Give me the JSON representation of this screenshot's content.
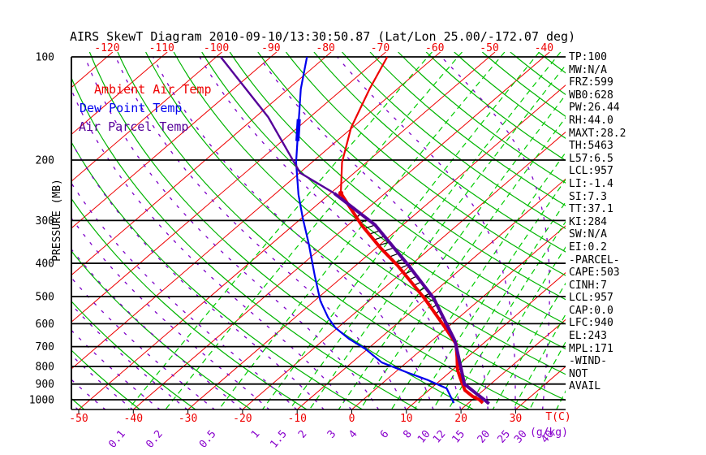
{
  "title": "AIRS SkewT Diagram 2010-09-10/13:30:50.87 (Lat/Lon 25.00/-172.07 deg)",
  "legend": [
    {
      "label": "Ambient Air Temp",
      "color": "#ee0000"
    },
    {
      "label": "Dew Point Temp",
      "color": "#0000ee"
    },
    {
      "label": "Air Parcel Temp",
      "color": "#550099"
    }
  ],
  "axes": {
    "pressure_label": "PRESSURE (MB)",
    "temp_label": "T(C)",
    "mixing_label": "(g/kg)",
    "pressure_ticks_mb": [
      100,
      200,
      300,
      400,
      500,
      600,
      700,
      800,
      900,
      1000
    ],
    "top_temp_ticks_c": [
      -120,
      -110,
      -100,
      -90,
      -80,
      -70,
      -60,
      -50,
      -40
    ],
    "bottom_temp_ticks_c": [
      -50,
      -40,
      -30,
      -20,
      -10,
      0,
      10,
      20,
      30
    ]
  },
  "stats": [
    "TP:100",
    "MW:N/A",
    "FRZ:599",
    "WB0:628",
    "PW:26.44",
    "RH:44.0",
    "MAXT:28.2",
    "TH:5463",
    "L57:6.5",
    "LCL:957",
    "LI:-1.4",
    "SI:7.3",
    "TT:37.1",
    "KI:284",
    "SW:N/A",
    "EI:0.2",
    "-PARCEL-",
    "CAPE:503",
    "CINH:7",
    "LCL:957",
    "CAP:0.0",
    "LFC:940",
    "EL:243",
    "MPL:171",
    "-WIND-",
    "NOT",
    "AVAIL"
  ],
  "colors": {
    "isotherm_red": "#ee0000",
    "dry_adiabat_green": "#00b400",
    "mixing_green": "#00cc00",
    "moist_purple": "#7d00c8",
    "purple_text": "#8800cc",
    "ambient_red": "#ee0000",
    "dew_blue": "#0000ee",
    "parcel_purple": "#550099",
    "black": "#000000"
  },
  "chart_data": {
    "type": "line",
    "subtype": "skew-t-log-p",
    "title": "AIRS SkewT Diagram 2010-09-10/13:30:50.87 (Lat/Lon 25.00/-172.07 deg)",
    "xlabel": "T(C)",
    "ylabel": "PRESSURE (MB)",
    "pressure_range_mb": [
      100,
      1070
    ],
    "bottom_temp_range_c": [
      -50,
      38
    ],
    "isotherms_c": {
      "min": -160,
      "max": 40,
      "step": 10
    },
    "dry_adiabats_theta_k": {
      "min": 220,
      "max": 470,
      "step": 10
    },
    "moist_adiabats_start_c": {
      "min": -55,
      "max": 40,
      "step": 5
    },
    "mixing_ratio_lines_gkg": [
      0.1,
      0.2,
      0.5,
      1,
      1.5,
      2,
      3,
      4,
      6,
      8,
      10,
      12,
      15,
      20,
      25,
      30,
      40
    ],
    "cape_hatch_between_mb": [
      250,
      900
    ],
    "dew_thick_segment_mb": [
      152,
      176
    ],
    "series": [
      {
        "name": "Ambient Air Temp",
        "color": "#ee0000",
        "points": [
          [
            100,
            -68.7
          ],
          [
            124,
            -65.1
          ],
          [
            161,
            -60.2
          ],
          [
            203,
            -54.5
          ],
          [
            250,
            -48.1
          ],
          [
            309,
            -37.6
          ],
          [
            360,
            -29.3
          ],
          [
            406,
            -22.3
          ],
          [
            506,
            -10.4
          ],
          [
            612,
            -0.7
          ],
          [
            687,
            5.1
          ],
          [
            753,
            8.2
          ],
          [
            818,
            10.9
          ],
          [
            863,
            13.1
          ],
          [
            938,
            16.6
          ],
          [
            979,
            19.4
          ],
          [
            1000,
            21.3
          ],
          [
            1022,
            22.6
          ]
        ]
      },
      {
        "name": "Dew Point Temp",
        "color": "#0000ee",
        "points": [
          [
            100,
            -83.4
          ],
          [
            124,
            -77.7
          ],
          [
            163,
            -69.5
          ],
          [
            203,
            -62.9
          ],
          [
            252,
            -55.6
          ],
          [
            296,
            -49.7
          ],
          [
            350,
            -43.3
          ],
          [
            436,
            -35.2
          ],
          [
            515,
            -28.9
          ],
          [
            575,
            -24.0
          ],
          [
            616,
            -20.5
          ],
          [
            664,
            -15.6
          ],
          [
            711,
            -10.4
          ],
          [
            779,
            -4.5
          ],
          [
            833,
            2.3
          ],
          [
            874,
            7.4
          ],
          [
            927,
            12.9
          ],
          [
            1000,
            16.3
          ],
          [
            1022,
            17.3
          ]
        ]
      },
      {
        "name": "Air Parcel Temp",
        "color": "#550099",
        "points": [
          [
            100,
            -99.2
          ],
          [
            150,
            -77.6
          ],
          [
            218,
            -59.9
          ],
          [
            250,
            -49.3
          ],
          [
            309,
            -35.1
          ],
          [
            406,
            -20.3
          ],
          [
            506,
            -8.7
          ],
          [
            674,
            4.3
          ],
          [
            842,
            12.7
          ],
          [
            900,
            15.2
          ],
          [
            955,
            19.1
          ],
          [
            1000,
            22.2
          ],
          [
            1027,
            23.9
          ]
        ]
      }
    ]
  }
}
